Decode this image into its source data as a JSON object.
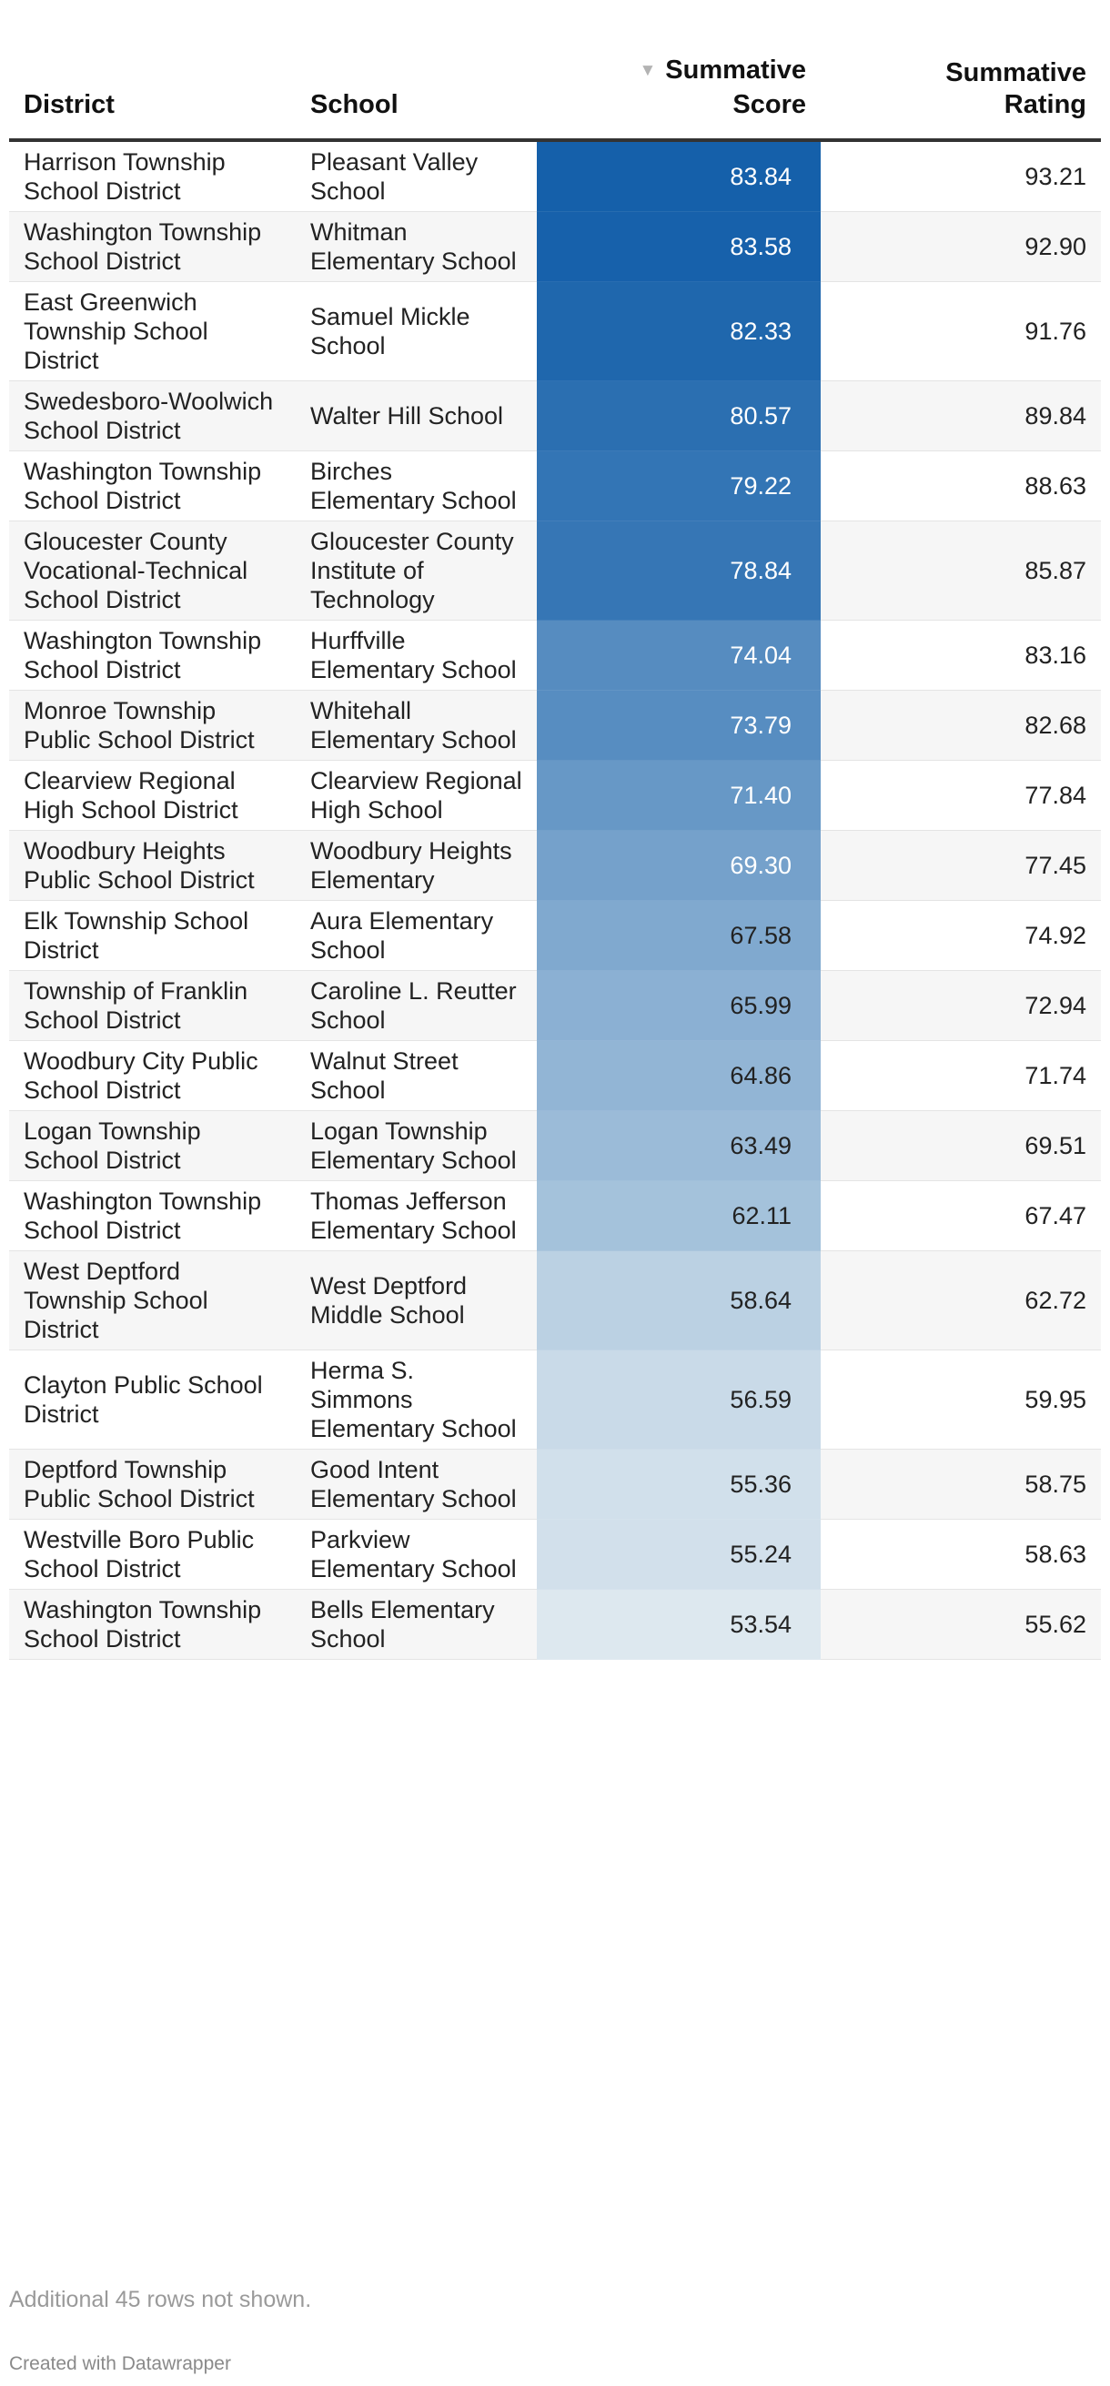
{
  "chart_data": {
    "type": "table",
    "columns": {
      "district": "District",
      "school": "School",
      "score": "Summative\nScore",
      "rating": "Summative\nRating"
    },
    "sort": {
      "column": "score",
      "direction": "descending",
      "icon": "sort-descending-icon"
    },
    "color_scale": {
      "low": "#dde8ef",
      "high": "#1560aa",
      "light_text": "#ffffff",
      "dark_text": "#222222"
    },
    "rows": [
      {
        "district": "Harrison Township School District",
        "school": "Pleasant Valley School",
        "score": "83.84",
        "rating": "93.21"
      },
      {
        "district": "Washington Township School District",
        "school": "Whitman Elementary School",
        "score": "83.58",
        "rating": "92.90"
      },
      {
        "district": "East Greenwich Township School District",
        "school": "Samuel Mickle School",
        "score": "82.33",
        "rating": "91.76"
      },
      {
        "district": "Swedesboro-Woolwich School District",
        "school": "Walter Hill School",
        "score": "80.57",
        "rating": "89.84"
      },
      {
        "district": "Washington Township School District",
        "school": "Birches Elementary School",
        "score": "79.22",
        "rating": "88.63"
      },
      {
        "district": "Gloucester County Vocational-Technical School District",
        "school": "Gloucester County Institute of Technology",
        "score": "78.84",
        "rating": "85.87"
      },
      {
        "district": "Washington Township School District",
        "school": "Hurffville Elementary School",
        "score": "74.04",
        "rating": "83.16"
      },
      {
        "district": "Monroe Township Public School District",
        "school": "Whitehall Elementary School",
        "score": "73.79",
        "rating": "82.68"
      },
      {
        "district": "Clearview Regional High School District",
        "school": "Clearview Regional High School",
        "score": "71.40",
        "rating": "77.84"
      },
      {
        "district": "Woodbury Heights Public School District",
        "school": "Woodbury Heights Elementary",
        "score": "69.30",
        "rating": "77.45"
      },
      {
        "district": "Elk Township School District",
        "school": "Aura Elementary School",
        "score": "67.58",
        "rating": "74.92"
      },
      {
        "district": "Township of Franklin School District",
        "school": "Caroline L. Reutter School",
        "score": "65.99",
        "rating": "72.94"
      },
      {
        "district": "Woodbury City Public School District",
        "school": "Walnut Street School",
        "score": "64.86",
        "rating": "71.74"
      },
      {
        "district": "Logan Township School District",
        "school": "Logan Township Elementary School",
        "score": "63.49",
        "rating": "69.51"
      },
      {
        "district": "Washington Township School District",
        "school": "Thomas Jefferson Elementary School",
        "score": "62.11",
        "rating": "67.47"
      },
      {
        "district": "West Deptford Township School District",
        "school": "West Deptford Middle School",
        "score": "58.64",
        "rating": "62.72"
      },
      {
        "district": "Clayton Public School District",
        "school": "Herma S. Simmons Elementary School",
        "score": "56.59",
        "rating": "59.95"
      },
      {
        "district": "Deptford Township Public School District",
        "school": "Good Intent Elementary School",
        "score": "55.36",
        "rating": "58.75"
      },
      {
        "district": "Westville Boro Public School District",
        "school": "Parkview Elementary School",
        "score": "55.24",
        "rating": "58.63"
      },
      {
        "district": "Washington Township School District",
        "school": "Bells Elementary School",
        "score": "53.54",
        "rating": "55.62"
      }
    ],
    "footnote": "Additional 45 rows not shown.",
    "credit": "Created with Datawrapper"
  }
}
